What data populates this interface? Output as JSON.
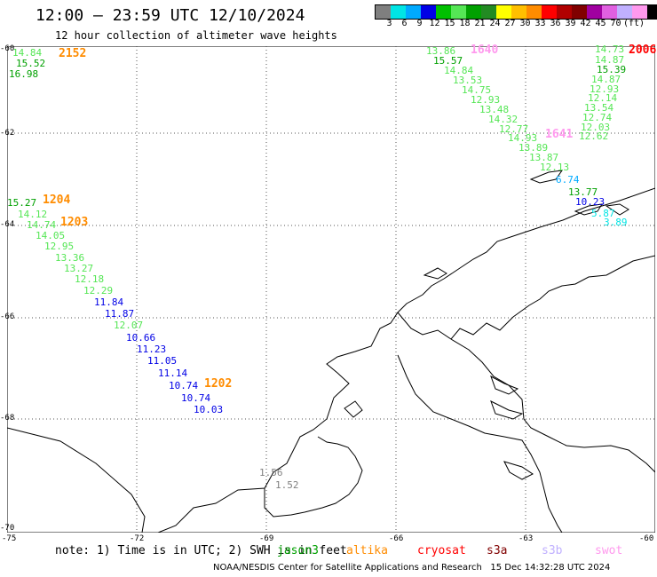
{
  "header": {
    "title": "12:00 – 23:59 UTC 12/10/2024",
    "subtitle": "12 hour collection of altimeter wave heights"
  },
  "color_scale": {
    "colors": [
      "#7f7f7f",
      "#00e5e5",
      "#00aaff",
      "#0000e6",
      "#00c000",
      "#55e655",
      "#00a000",
      "#228b22",
      "#ffff00",
      "#ffbf00",
      "#ff8c00",
      "#ff0000",
      "#b00000",
      "#800000",
      "#a000a0",
      "#e060e0",
      "#c0b0ff",
      "#ff99ee",
      "#000000"
    ],
    "labels": [
      "3",
      "6",
      "9",
      "12",
      "15",
      "18",
      "21",
      "24",
      "27",
      "30",
      "33",
      "36",
      "39",
      "42",
      "45",
      "70",
      "(ft)"
    ]
  },
  "axes": {
    "lat_labels": [
      "-60",
      "-62",
      "-64",
      "-66",
      "-68",
      "-70"
    ],
    "lon_labels": [
      "-75",
      "-72",
      "-69",
      "-66",
      "-63",
      "-60"
    ]
  },
  "pass_labels": [
    {
      "text": "2152",
      "color": "#ff8c00"
    },
    {
      "text": "1640",
      "color": "#ff99ee"
    },
    {
      "text": "2006",
      "color": "#ff0000"
    },
    {
      "text": "1204",
      "color": "#ff8c00"
    },
    {
      "text": "1203",
      "color": "#ff8c00"
    },
    {
      "text": "1641",
      "color": "#ff99ee"
    },
    {
      "text": "1202",
      "color": "#ff8c00"
    }
  ],
  "wave_heights": [
    {
      "value": "14.84",
      "color": "#55e655"
    },
    {
      "value": "15.52",
      "color": "#00a000"
    },
    {
      "value": "16.98",
      "color": "#00a000"
    },
    {
      "value": "13.86",
      "color": "#55e655"
    },
    {
      "value": "15.57",
      "color": "#00a000"
    },
    {
      "value": "14.84",
      "color": "#55e655"
    },
    {
      "value": "13.53",
      "color": "#55e655"
    },
    {
      "value": "14.75",
      "color": "#55e655"
    },
    {
      "value": "12.93",
      "color": "#55e655"
    },
    {
      "value": "13.48",
      "color": "#55e655"
    },
    {
      "value": "14.32",
      "color": "#55e655"
    },
    {
      "value": "12.77",
      "color": "#55e655"
    },
    {
      "value": "14.93",
      "color": "#55e655"
    },
    {
      "value": "13.89",
      "color": "#55e655"
    },
    {
      "value": "13.87",
      "color": "#55e655"
    },
    {
      "value": "12.13",
      "color": "#55e655"
    },
    {
      "value": "6.74",
      "color": "#00aaff"
    },
    {
      "value": "13.77",
      "color": "#00a000"
    },
    {
      "value": "10.23",
      "color": "#0000e6"
    },
    {
      "value": "5.87",
      "color": "#00e5e5"
    },
    {
      "value": "3.89",
      "color": "#00e5e5"
    },
    {
      "value": "14.73",
      "color": "#55e655"
    },
    {
      "value": "14.87",
      "color": "#55e655"
    },
    {
      "value": "15.39",
      "color": "#00a000"
    },
    {
      "value": "14.87",
      "color": "#55e655"
    },
    {
      "value": "12.93",
      "color": "#55e655"
    },
    {
      "value": "12.14",
      "color": "#55e655"
    },
    {
      "value": "13.54",
      "color": "#55e655"
    },
    {
      "value": "12.74",
      "color": "#55e655"
    },
    {
      "value": "12.03",
      "color": "#55e655"
    },
    {
      "value": "12.62",
      "color": "#55e655"
    },
    {
      "value": "15.27",
      "color": "#00a000"
    },
    {
      "value": "14.12",
      "color": "#55e655"
    },
    {
      "value": "14.74",
      "color": "#55e655"
    },
    {
      "value": "14.05",
      "color": "#55e655"
    },
    {
      "value": "12.95",
      "color": "#55e655"
    },
    {
      "value": "13.36",
      "color": "#55e655"
    },
    {
      "value": "13.27",
      "color": "#55e655"
    },
    {
      "value": "12.18",
      "color": "#55e655"
    },
    {
      "value": "12.29",
      "color": "#55e655"
    },
    {
      "value": "11.84",
      "color": "#0000e6"
    },
    {
      "value": "11.87",
      "color": "#0000e6"
    },
    {
      "value": "12.07",
      "color": "#55e655"
    },
    {
      "value": "10.66",
      "color": "#0000e6"
    },
    {
      "value": "11.23",
      "color": "#0000e6"
    },
    {
      "value": "11.05",
      "color": "#0000e6"
    },
    {
      "value": "11.14",
      "color": "#0000e6"
    },
    {
      "value": "10.74",
      "color": "#0000e6"
    },
    {
      "value": "10.74",
      "color": "#0000e6"
    },
    {
      "value": "10.03",
      "color": "#0000e6"
    },
    {
      "value": "1.56",
      "color": "#7f7f7f"
    },
    {
      "value": "1.52",
      "color": "#7f7f7f"
    }
  ],
  "footer": {
    "note": "note: 1) Time is in UTC; 2) SWH is in feet",
    "satellites": [
      {
        "name": "jason3",
        "color": "#00a000"
      },
      {
        "name": "altika",
        "color": "#ff8c00"
      },
      {
        "name": "cryosat",
        "color": "#ff0000"
      },
      {
        "name": "s3a",
        "color": "#800000"
      },
      {
        "name": "s3b",
        "color": "#c0b0ff"
      },
      {
        "name": "swot",
        "color": "#ff99ee"
      }
    ],
    "credit": "NOAA/NESDIS Center for Satellite Applications and Research   15 Dec 14:32:28 UTC 2024"
  }
}
